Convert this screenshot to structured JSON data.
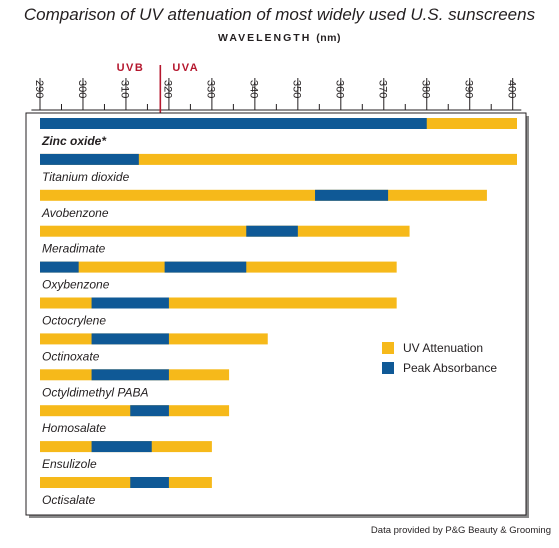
{
  "chart_data": {
    "type": "bar",
    "title": "Comparison of UV attenuation of most widely used U.S. sunscreens",
    "xlabel": "WAVELENGTH",
    "xlabel_unit": "(nm)",
    "xlim": [
      288,
      402
    ],
    "ticks": [
      "290",
      "300",
      "310",
      "320",
      "330",
      "340",
      "350",
      "360",
      "370",
      "380",
      "390",
      "400"
    ],
    "band_labels": {
      "uvb": "UVB",
      "uva": "UVA"
    },
    "uvb_uva_boundary": 318,
    "grid": false,
    "legend_position": "right",
    "series": [
      {
        "name": "UV Attenuation",
        "color": "#f6b91a"
      },
      {
        "name": "Peak Absorbance",
        "color": "#0f5996"
      }
    ],
    "rows": [
      {
        "label": "Zinc oxide*",
        "bold": true,
        "attenuation": [
          290,
          401
        ],
        "peak": [
          290,
          380
        ]
      },
      {
        "label": "Titanium dioxide",
        "attenuation": [
          290,
          401
        ],
        "peak": [
          290,
          313
        ]
      },
      {
        "label": "Avobenzone",
        "attenuation": [
          290,
          394
        ],
        "peak": [
          354,
          371
        ]
      },
      {
        "label": "Meradimate",
        "attenuation": [
          290,
          376
        ],
        "peak": [
          338,
          350
        ]
      },
      {
        "label": "Oxybenzone",
        "attenuation": [
          290,
          373
        ],
        "peak": [
          [
            290,
            299
          ],
          [
            319,
            338
          ]
        ]
      },
      {
        "label": "Octocrylene",
        "attenuation": [
          290,
          373
        ],
        "peak": [
          302,
          320
        ]
      },
      {
        "label": "Octinoxate",
        "attenuation": [
          290,
          343
        ],
        "peak": [
          302,
          320
        ]
      },
      {
        "label": "Octyldimethyl PABA",
        "attenuation": [
          290,
          334
        ],
        "peak": [
          302,
          320
        ]
      },
      {
        "label": "Homosalate",
        "attenuation": [
          290,
          334
        ],
        "peak": [
          311,
          320
        ]
      },
      {
        "label": "Ensulizole",
        "attenuation": [
          290,
          330
        ],
        "peak": [
          302,
          316
        ]
      },
      {
        "label": "Octisalate",
        "attenuation": [
          290,
          330
        ],
        "peak": [
          311,
          320
        ]
      }
    ]
  },
  "source": "Data provided by P&G Beauty & Grooming"
}
